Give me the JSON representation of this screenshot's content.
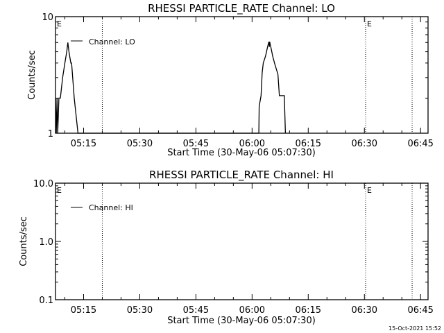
{
  "footer_timestamp": "15-Oct-2021 15:52",
  "chart_data": [
    {
      "type": "line",
      "title": "RHESSI PARTICLE_RATE Channel: LO",
      "xlabel": "Start Time (30-May-06 05:07:30)",
      "ylabel": "Counts/sec",
      "yscale": "log",
      "ylim": [
        1,
        10
      ],
      "xlim": [
        "05:07:30",
        "06:47:00"
      ],
      "ytick_labels": [
        "1",
        "10"
      ],
      "yticks": [
        1,
        10
      ],
      "xtick_labels": [
        "05:15",
        "05:30",
        "05:45",
        "06:00",
        "06:15",
        "06:30",
        "06:45"
      ],
      "legend": {
        "position": "top-left"
      },
      "grid": false,
      "dotted_lines": [
        "05:20:00",
        "06:30:20",
        "06:42:45"
      ],
      "markers": [
        {
          "time": "05:07:30",
          "label": "E"
        },
        {
          "time": "06:30:20",
          "label": "E"
        }
      ],
      "series": [
        {
          "name": "Channel: LO",
          "color": "#000000",
          "points": [
            [
              "05:07:30",
              2
            ],
            [
              "05:07:42",
              1
            ],
            [
              "05:07:54",
              2
            ],
            [
              "05:08:06",
              1
            ],
            [
              "05:08:24",
              2
            ],
            [
              "05:08:48",
              2
            ],
            [
              "05:09:24",
              3
            ],
            [
              "05:10:00",
              4
            ],
            [
              "05:10:30",
              5
            ],
            [
              "05:10:48",
              6
            ],
            [
              "05:11:06",
              5
            ],
            [
              "05:11:36",
              4
            ],
            [
              "05:11:48",
              4
            ],
            [
              "05:12:30",
              2
            ],
            [
              "05:13:30",
              1
            ],
            [
              "06:01:48",
              1
            ],
            [
              "06:01:54",
              1.7
            ],
            [
              "06:02:24",
              2.1
            ],
            [
              "06:02:42",
              3.3
            ],
            [
              "06:03:00",
              4
            ],
            [
              "06:03:36",
              4.6
            ],
            [
              "06:04:12",
              5.6
            ],
            [
              "06:04:30",
              6.1
            ],
            [
              "06:04:36",
              5.5
            ],
            [
              "06:04:42",
              6.1
            ],
            [
              "06:05:06",
              5.3
            ],
            [
              "06:05:30",
              4.6
            ],
            [
              "06:06:00",
              4
            ],
            [
              "06:06:54",
              3.2
            ],
            [
              "06:07:18",
              2.1
            ],
            [
              "06:08:36",
              2.1
            ],
            [
              "06:08:54",
              1
            ]
          ]
        }
      ]
    },
    {
      "type": "line",
      "title": "RHESSI PARTICLE_RATE Channel: HI",
      "xlabel": "Start Time (30-May-06 05:07:30)",
      "ylabel": "Counts/sec",
      "yscale": "log",
      "ylim": [
        0.1,
        10
      ],
      "xlim": [
        "05:07:30",
        "06:47:00"
      ],
      "ytick_labels": [
        "0.1",
        "1.0",
        "10.0"
      ],
      "yticks": [
        0.1,
        1,
        10
      ],
      "xtick_labels": [
        "05:15",
        "05:30",
        "05:45",
        "06:00",
        "06:15",
        "06:30",
        "06:45"
      ],
      "legend": {
        "position": "top-left"
      },
      "grid": false,
      "dotted_lines": [
        "05:20:00",
        "06:30:20",
        "06:42:45"
      ],
      "markers": [
        {
          "time": "05:07:30",
          "label": "E"
        },
        {
          "time": "06:30:20",
          "label": "E"
        }
      ],
      "series": [
        {
          "name": "Channel: HI",
          "color": "#000000",
          "points": []
        }
      ]
    }
  ]
}
